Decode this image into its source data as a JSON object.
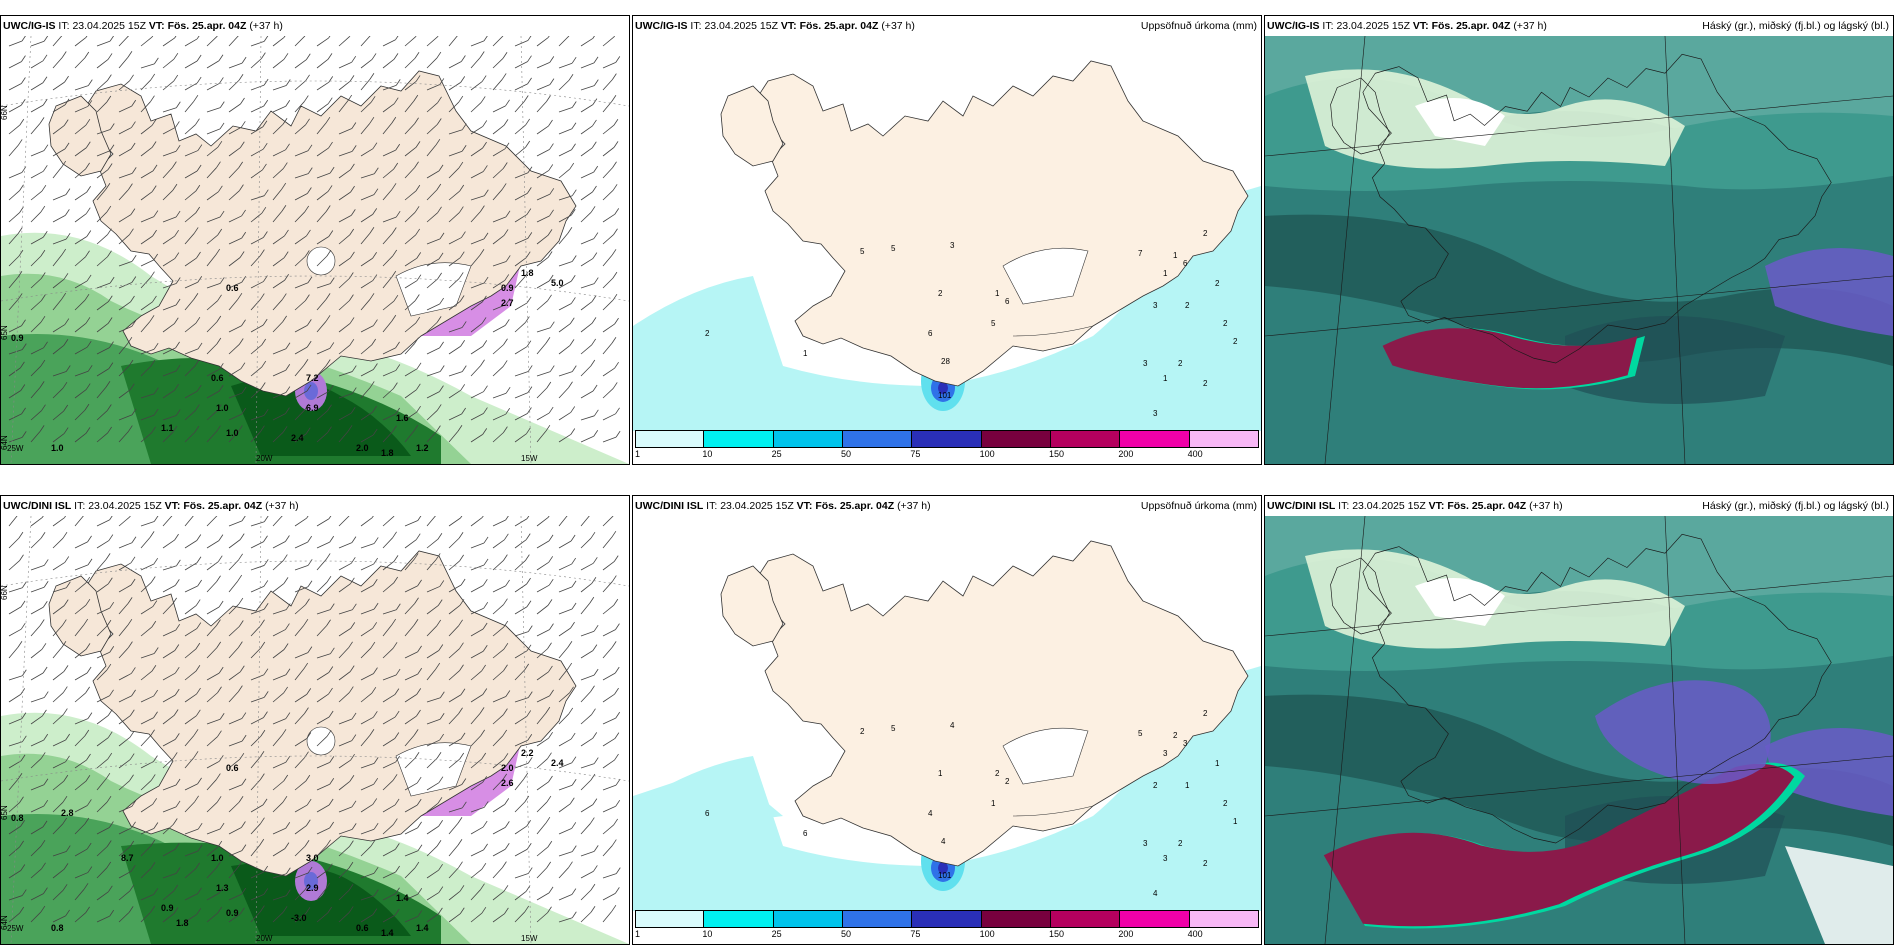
{
  "panels": [
    {
      "id": "ig-wind",
      "model": "UWC/IG-IS",
      "it_label": "IT:",
      "it_value": "23.04.2025 15Z",
      "vt_label": "VT:",
      "vt_value": "Fös. 25.apr. 04Z",
      "lead": "(+37 h)",
      "right_title": "",
      "lat_labels": [
        "66N",
        "65N",
        "64N"
      ],
      "lon_labels": [
        "20W",
        "15W",
        "25W"
      ],
      "values": [
        "0.6",
        "0.9",
        "1.0",
        "0.6",
        "1.1",
        "1.0",
        "2.4",
        "2.0",
        "1.8",
        "1.6",
        "1.0",
        "1.2",
        "0.9",
        "1.8",
        "5.0",
        "2.7",
        "7.2",
        "6.9"
      ]
    },
    {
      "id": "ig-accum",
      "model": "UWC/IG-IS",
      "it_label": "IT:",
      "it_value": "23.04.2025 15Z",
      "vt_label": "VT:",
      "vt_value": "Fös. 25.apr. 04Z",
      "lead": "(+37 h)",
      "right_title": "Uppsöfnuð úrkoma (mm)",
      "values": [
        "5",
        "3",
        "5",
        "2",
        "6",
        "5",
        "1",
        "6",
        "28",
        "101",
        "2",
        "1",
        "1",
        "7",
        "6",
        "2",
        "2",
        "2",
        "2",
        "2",
        "3",
        "3",
        "2",
        "3",
        "2",
        "1",
        "1"
      ]
    },
    {
      "id": "ig-cloud",
      "model": "UWC/IG-IS",
      "it_label": "IT:",
      "it_value": "23.04.2025 15Z",
      "vt_label": "VT:",
      "vt_value": "Fös. 25.apr. 04Z",
      "lead": "(+37 h)",
      "right_title": "Háský (gr.), miðský (fj.bl.) og lágský (bl.)"
    },
    {
      "id": "dini-wind",
      "model": "UWC/DINI ISL",
      "it_label": "IT:",
      "it_value": "23.04.2025 15Z",
      "vt_label": "VT:",
      "vt_value": "Fös. 25.apr. 04Z",
      "lead": "(+37 h)",
      "right_title": "",
      "lat_labels": [
        "66N",
        "65N",
        "64N"
      ],
      "lon_labels": [
        "20W",
        "15W",
        "25W"
      ],
      "values": [
        "0.6",
        "0.8",
        "0.8",
        "1.0",
        "0.9",
        "0.9",
        "-3.0",
        "0.6",
        "1.4",
        "1.4",
        "1.3",
        "1.4",
        "2.0",
        "2.2",
        "2.4",
        "2.6",
        "3.0",
        "2.9",
        "2.8",
        "8.7",
        "1.8"
      ]
    },
    {
      "id": "dini-accum",
      "model": "UWC/DINI ISL",
      "it_label": "IT:",
      "it_value": "23.04.2025 15Z",
      "vt_label": "VT:",
      "vt_value": "Fös. 25.apr. 04Z",
      "lead": "(+37 h)",
      "right_title": "Uppsöfnuð úrkoma (mm)",
      "values": [
        "5",
        "4",
        "2",
        "1",
        "2",
        "1",
        "2",
        "4",
        "4",
        "101",
        "6",
        "6",
        "3",
        "5",
        "3",
        "2",
        "1",
        "2",
        "2",
        "2",
        "4",
        "3",
        "1",
        "2",
        "1",
        "2",
        "3"
      ]
    },
    {
      "id": "dini-cloud",
      "model": "UWC/DINI ISL",
      "it_label": "IT:",
      "it_value": "23.04.2025 15Z",
      "vt_label": "VT:",
      "vt_value": "Fös. 25.apr. 04Z",
      "lead": "(+37 h)",
      "right_title": "Háský (gr.), miðský (fj.bl.) og lágský (bl.)"
    }
  ],
  "colorbar": {
    "ticks": [
      "1",
      "10",
      "25",
      "50",
      "75",
      "100",
      "150",
      "200",
      "400"
    ],
    "colors": [
      "#d9fbfc",
      "#00f0f0",
      "#00c4ec",
      "#2f72e8",
      "#2a2fb8",
      "#78003e",
      "#b4005e",
      "#f000a8",
      "#f8b8f6"
    ]
  },
  "colors": {
    "land": "#f8e8d8",
    "sea_precip": "#b6f5f5",
    "green_light": "#b8e8b8",
    "green_dark": "#0a5a1a",
    "cloud_teal": "#3a8a80",
    "cloud_purple": "#6a5ac8",
    "cloud_red": "#8a1a4a"
  }
}
